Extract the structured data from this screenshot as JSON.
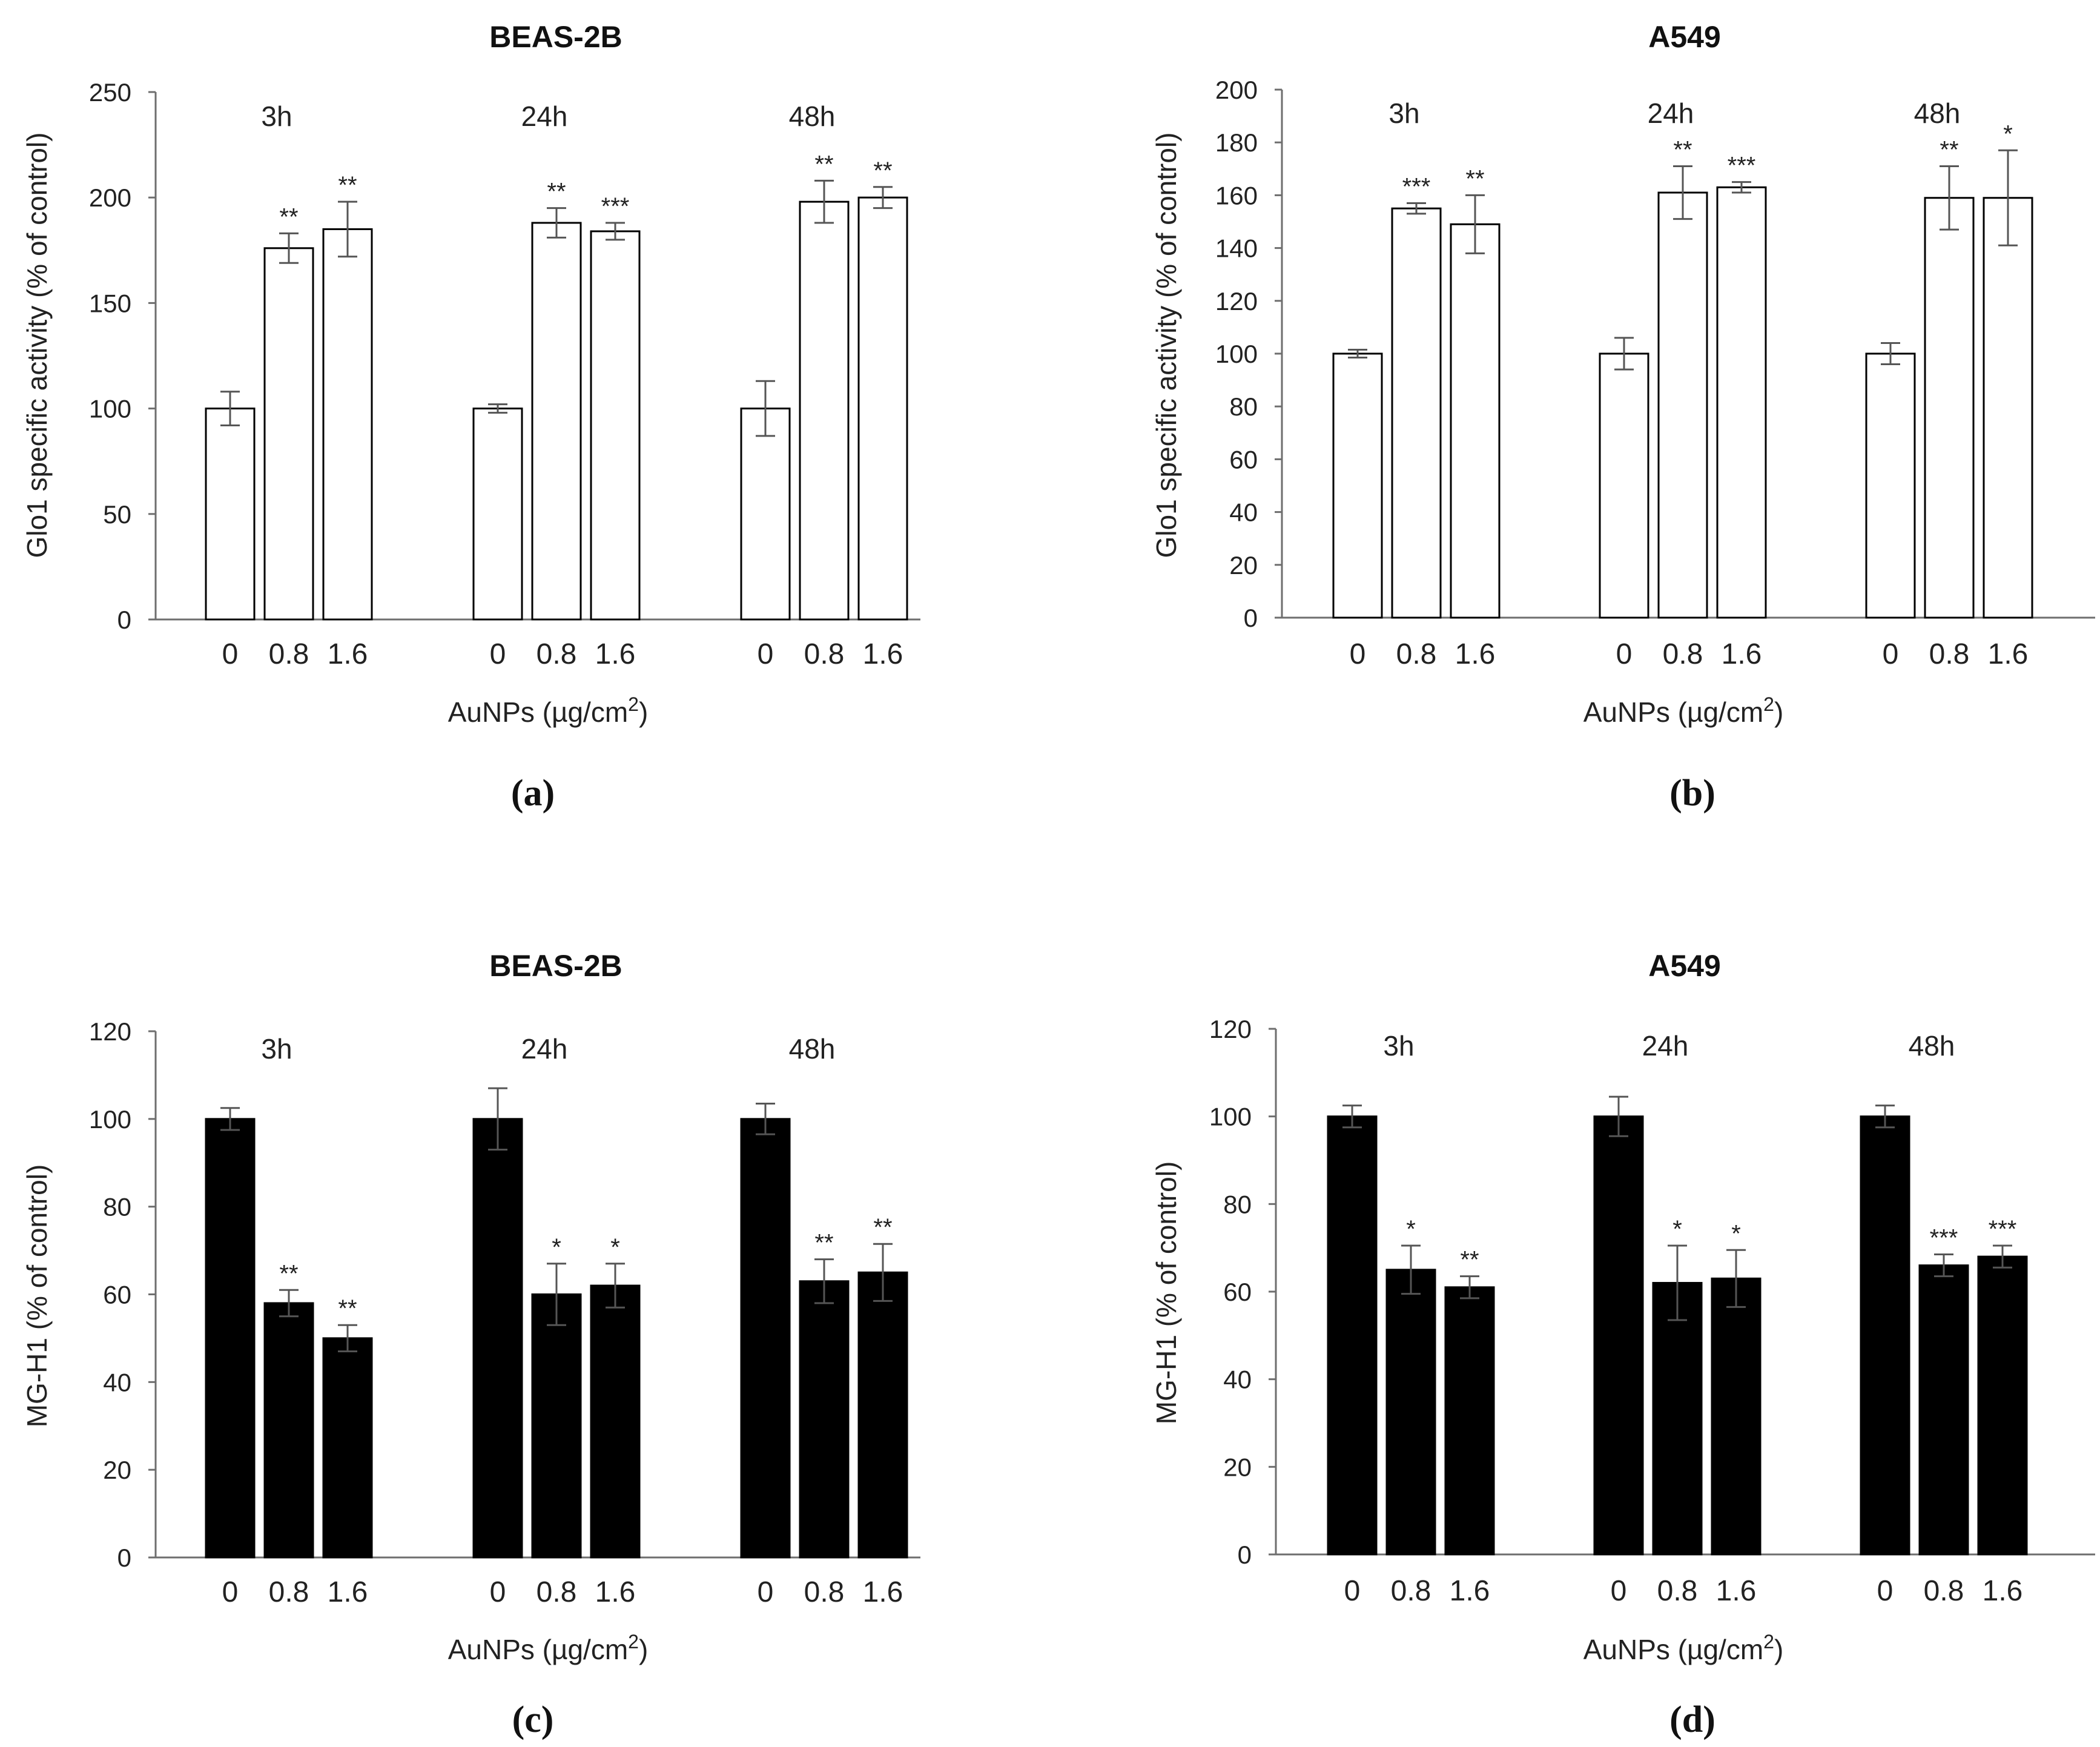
{
  "chart_data": [
    {
      "panel_label": "(a)",
      "type": "bar",
      "title": "BEAS-2B",
      "ylabel": "Glo1 specific activity (% of control)",
      "xlabel_main": "AuNPs  (µg/cm",
      "xlabel_sup": "2",
      "xlabel_tail": ")",
      "ylim": [
        0,
        250
      ],
      "yticks": [
        0,
        50,
        100,
        150,
        200,
        250
      ],
      "bar_fill": "#ffffff",
      "groups": [
        {
          "label": "3h",
          "categories": [
            "0",
            "0.8",
            "1.6"
          ],
          "values": [
            100,
            176,
            185
          ],
          "errors": [
            8,
            7,
            13
          ],
          "sig": [
            "",
            "**",
            "**"
          ]
        },
        {
          "label": "24h",
          "categories": [
            "0",
            "0.8",
            "1.6"
          ],
          "values": [
            100,
            188,
            184
          ],
          "errors": [
            2,
            7,
            4
          ],
          "sig": [
            "",
            "**",
            "***"
          ]
        },
        {
          "label": "48h",
          "categories": [
            "0",
            "0.8",
            "1.6"
          ],
          "values": [
            100,
            198,
            200
          ],
          "errors": [
            13,
            10,
            5
          ],
          "sig": [
            "",
            "**",
            "**"
          ]
        }
      ]
    },
    {
      "panel_label": "(b)",
      "type": "bar",
      "title": "A549",
      "ylabel": "Glo1 specific activity (% of control)",
      "xlabel_main": "AuNPs  (µg/cm",
      "xlabel_sup": "2",
      "xlabel_tail": ")",
      "ylim": [
        0,
        200
      ],
      "yticks": [
        0,
        20,
        40,
        60,
        80,
        100,
        120,
        140,
        160,
        180,
        200
      ],
      "bar_fill": "#ffffff",
      "groups": [
        {
          "label": "3h",
          "categories": [
            "0",
            "0.8",
            "1.6"
          ],
          "values": [
            100,
            155,
            149
          ],
          "errors": [
            1.5,
            2,
            11
          ],
          "sig": [
            "",
            "***",
            "**"
          ]
        },
        {
          "label": "24h",
          "categories": [
            "0",
            "0.8",
            "1.6"
          ],
          "values": [
            100,
            161,
            163
          ],
          "errors": [
            6,
            10,
            2
          ],
          "sig": [
            "",
            "**",
            "***"
          ]
        },
        {
          "label": "48h",
          "categories": [
            "0",
            "0.8",
            "1.6"
          ],
          "values": [
            100,
            159,
            159
          ],
          "errors": [
            4,
            12,
            18
          ],
          "sig": [
            "",
            "**",
            "*"
          ]
        }
      ]
    },
    {
      "panel_label": "(c)",
      "type": "bar",
      "title": "BEAS-2B",
      "ylabel": "MG-H1  (% of control)",
      "xlabel_main": "AuNPs  (µg/cm",
      "xlabel_sup": "2",
      "xlabel_tail": ")",
      "ylim": [
        0,
        120
      ],
      "yticks": [
        0,
        20,
        40,
        60,
        80,
        100,
        120
      ],
      "bar_fill": "#000000",
      "groups": [
        {
          "label": "3h",
          "categories": [
            "0",
            "0.8",
            "1.6"
          ],
          "values": [
            100,
            58,
            50
          ],
          "errors": [
            2.5,
            3,
            3
          ],
          "sig": [
            "",
            "**",
            "**"
          ]
        },
        {
          "label": "24h",
          "categories": [
            "0",
            "0.8",
            "1.6"
          ],
          "values": [
            100,
            60,
            62
          ],
          "errors": [
            7,
            7,
            5
          ],
          "sig": [
            "",
            "*",
            "*"
          ]
        },
        {
          "label": "48h",
          "categories": [
            "0",
            "0.8",
            "1.6"
          ],
          "values": [
            100,
            63,
            65
          ],
          "errors": [
            3.5,
            5,
            6.5
          ],
          "sig": [
            "",
            "**",
            "**"
          ]
        }
      ]
    },
    {
      "panel_label": "(d)",
      "type": "bar",
      "title": "A549",
      "ylabel": "MG-H1  (% of control)",
      "xlabel_main": "AuNPs  (µg/cm",
      "xlabel_sup": "2",
      "xlabel_tail": ")",
      "ylim": [
        0,
        120
      ],
      "yticks": [
        0,
        20,
        40,
        60,
        80,
        100,
        120
      ],
      "bar_fill": "#000000",
      "groups": [
        {
          "label": "3h",
          "categories": [
            "0",
            "0.8",
            "1.6"
          ],
          "values": [
            100,
            65,
            61
          ],
          "errors": [
            2.5,
            5.5,
            2.5
          ],
          "sig": [
            "",
            "*",
            "**"
          ]
        },
        {
          "label": "24h",
          "categories": [
            "0",
            "0.8",
            "1.6"
          ],
          "values": [
            100,
            62,
            63
          ],
          "errors": [
            4.5,
            8.5,
            6.5
          ],
          "sig": [
            "",
            "*",
            "*"
          ]
        },
        {
          "label": "48h",
          "categories": [
            "0",
            "0.8",
            "1.6"
          ],
          "values": [
            100,
            66,
            68
          ],
          "errors": [
            2.5,
            2.5,
            2.5
          ],
          "sig": [
            "",
            "***",
            "***"
          ]
        }
      ]
    }
  ]
}
